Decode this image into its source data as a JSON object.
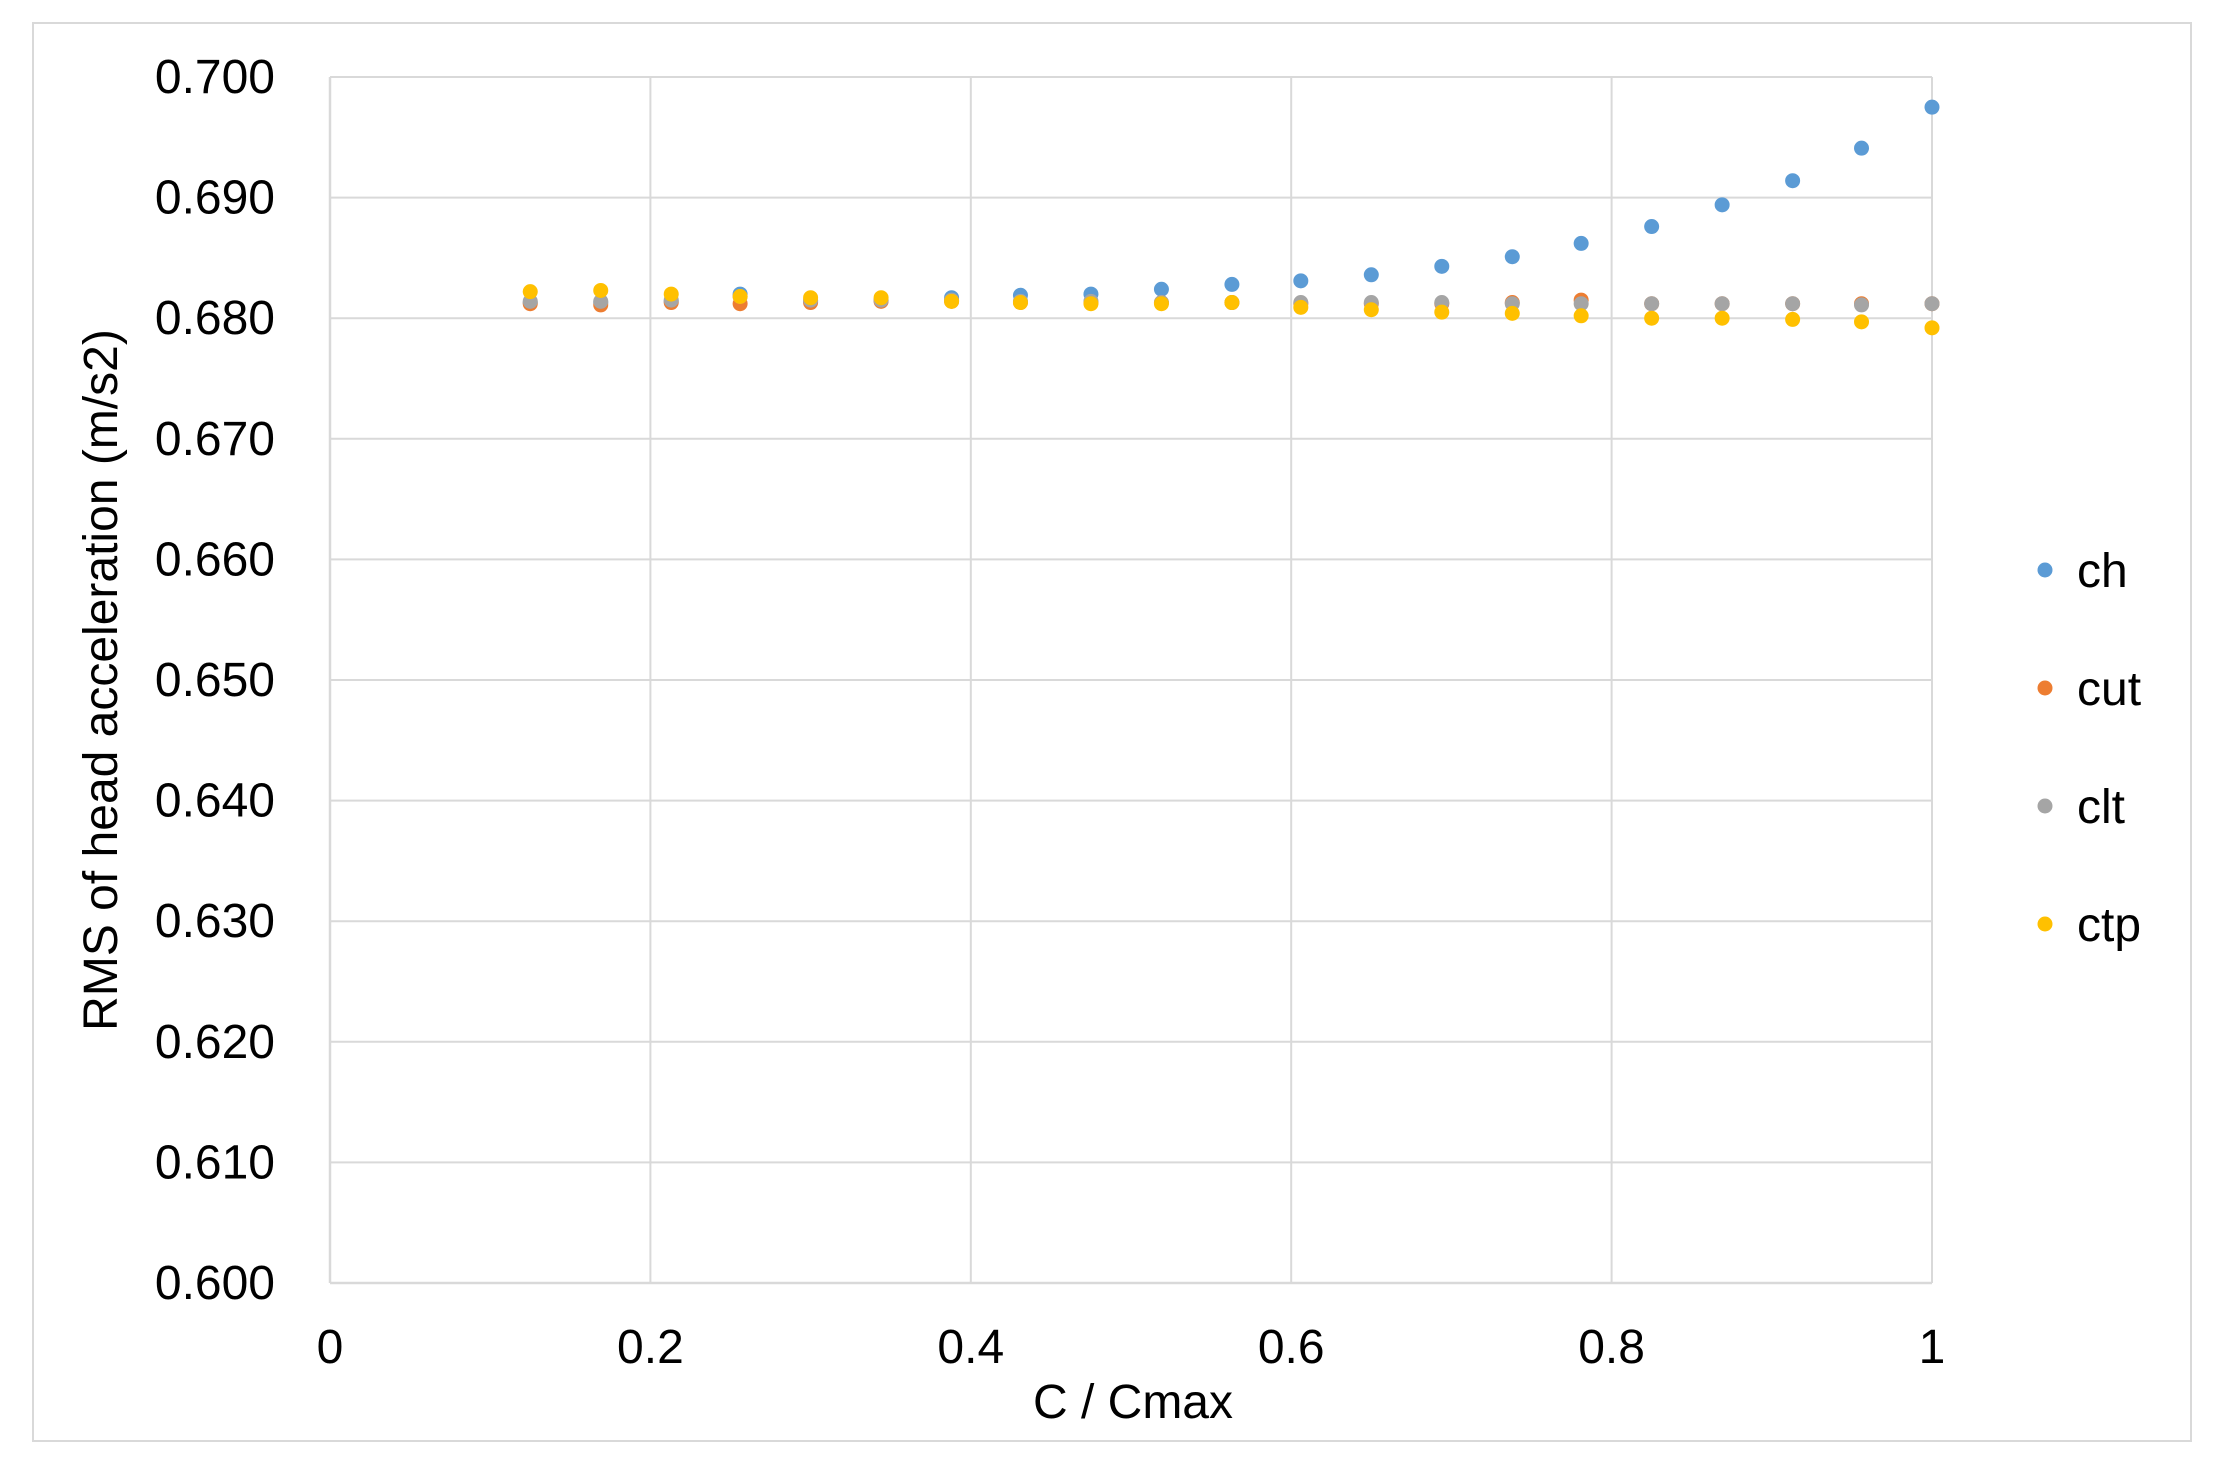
{
  "chart_data": {
    "type": "scatter",
    "xlabel": "C / Cmax",
    "ylabel": "RMS of head acceleration (m/s2)",
    "xlim": [
      0,
      1
    ],
    "ylim": [
      0.6,
      0.7
    ],
    "x_ticks": [
      0,
      0.2,
      0.4,
      0.6,
      0.8,
      1
    ],
    "x_tick_labels": [
      "0",
      "0.2",
      "0.4",
      "0.6",
      "0.8",
      "1"
    ],
    "y_ticks": [
      0.6,
      0.61,
      0.62,
      0.63,
      0.64,
      0.65,
      0.66,
      0.67,
      0.68,
      0.69,
      0.7
    ],
    "y_tick_labels": [
      "0.600",
      "0.610",
      "0.620",
      "0.630",
      "0.640",
      "0.650",
      "0.660",
      "0.670",
      "0.680",
      "0.690",
      "0.700"
    ],
    "grid": true,
    "legend_position": "right",
    "x": [
      0.125,
      0.169,
      0.213,
      0.256,
      0.3,
      0.344,
      0.388,
      0.431,
      0.475,
      0.519,
      0.563,
      0.606,
      0.65,
      0.694,
      0.738,
      0.781,
      0.825,
      0.869,
      0.913,
      0.956,
      1.0
    ],
    "series": [
      {
        "name": "ch",
        "color": "#5b9bd5",
        "values": [
          0.6813,
          0.6813,
          0.6814,
          0.682,
          0.6814,
          0.6815,
          0.6817,
          0.6819,
          0.682,
          0.6824,
          0.6828,
          0.6831,
          0.6836,
          0.6843,
          0.6851,
          0.6862,
          0.6876,
          0.6894,
          0.6914,
          0.6941,
          0.6975
        ]
      },
      {
        "name": "cut",
        "color": "#ed7d31",
        "values": [
          0.6812,
          0.6811,
          0.6813,
          0.6812,
          0.6813,
          0.6814,
          0.6814,
          0.6813,
          0.6813,
          0.6813,
          0.6813,
          0.6812,
          0.6812,
          0.6812,
          0.6813,
          0.6815,
          0.6812,
          0.6812,
          0.6812,
          0.6812,
          0.6812
        ]
      },
      {
        "name": "clt",
        "color": "#a5a5a5",
        "values": [
          0.6814,
          0.6814,
          0.6815,
          0.6818,
          0.6815,
          0.6815,
          0.6815,
          0.6814,
          0.6814,
          0.6813,
          0.6813,
          0.6813,
          0.6813,
          0.6813,
          0.6812,
          0.6812,
          0.6812,
          0.6812,
          0.6812,
          0.6811,
          0.6812
        ]
      },
      {
        "name": "ctp",
        "color": "#ffc000",
        "values": [
          0.6822,
          0.6823,
          0.682,
          0.6818,
          0.6817,
          0.6817,
          0.6814,
          0.6813,
          0.6812,
          0.6812,
          0.6813,
          0.6809,
          0.6807,
          0.6805,
          0.6804,
          0.6802,
          0.68,
          0.68,
          0.6799,
          0.6797,
          0.6792
        ]
      }
    ]
  }
}
